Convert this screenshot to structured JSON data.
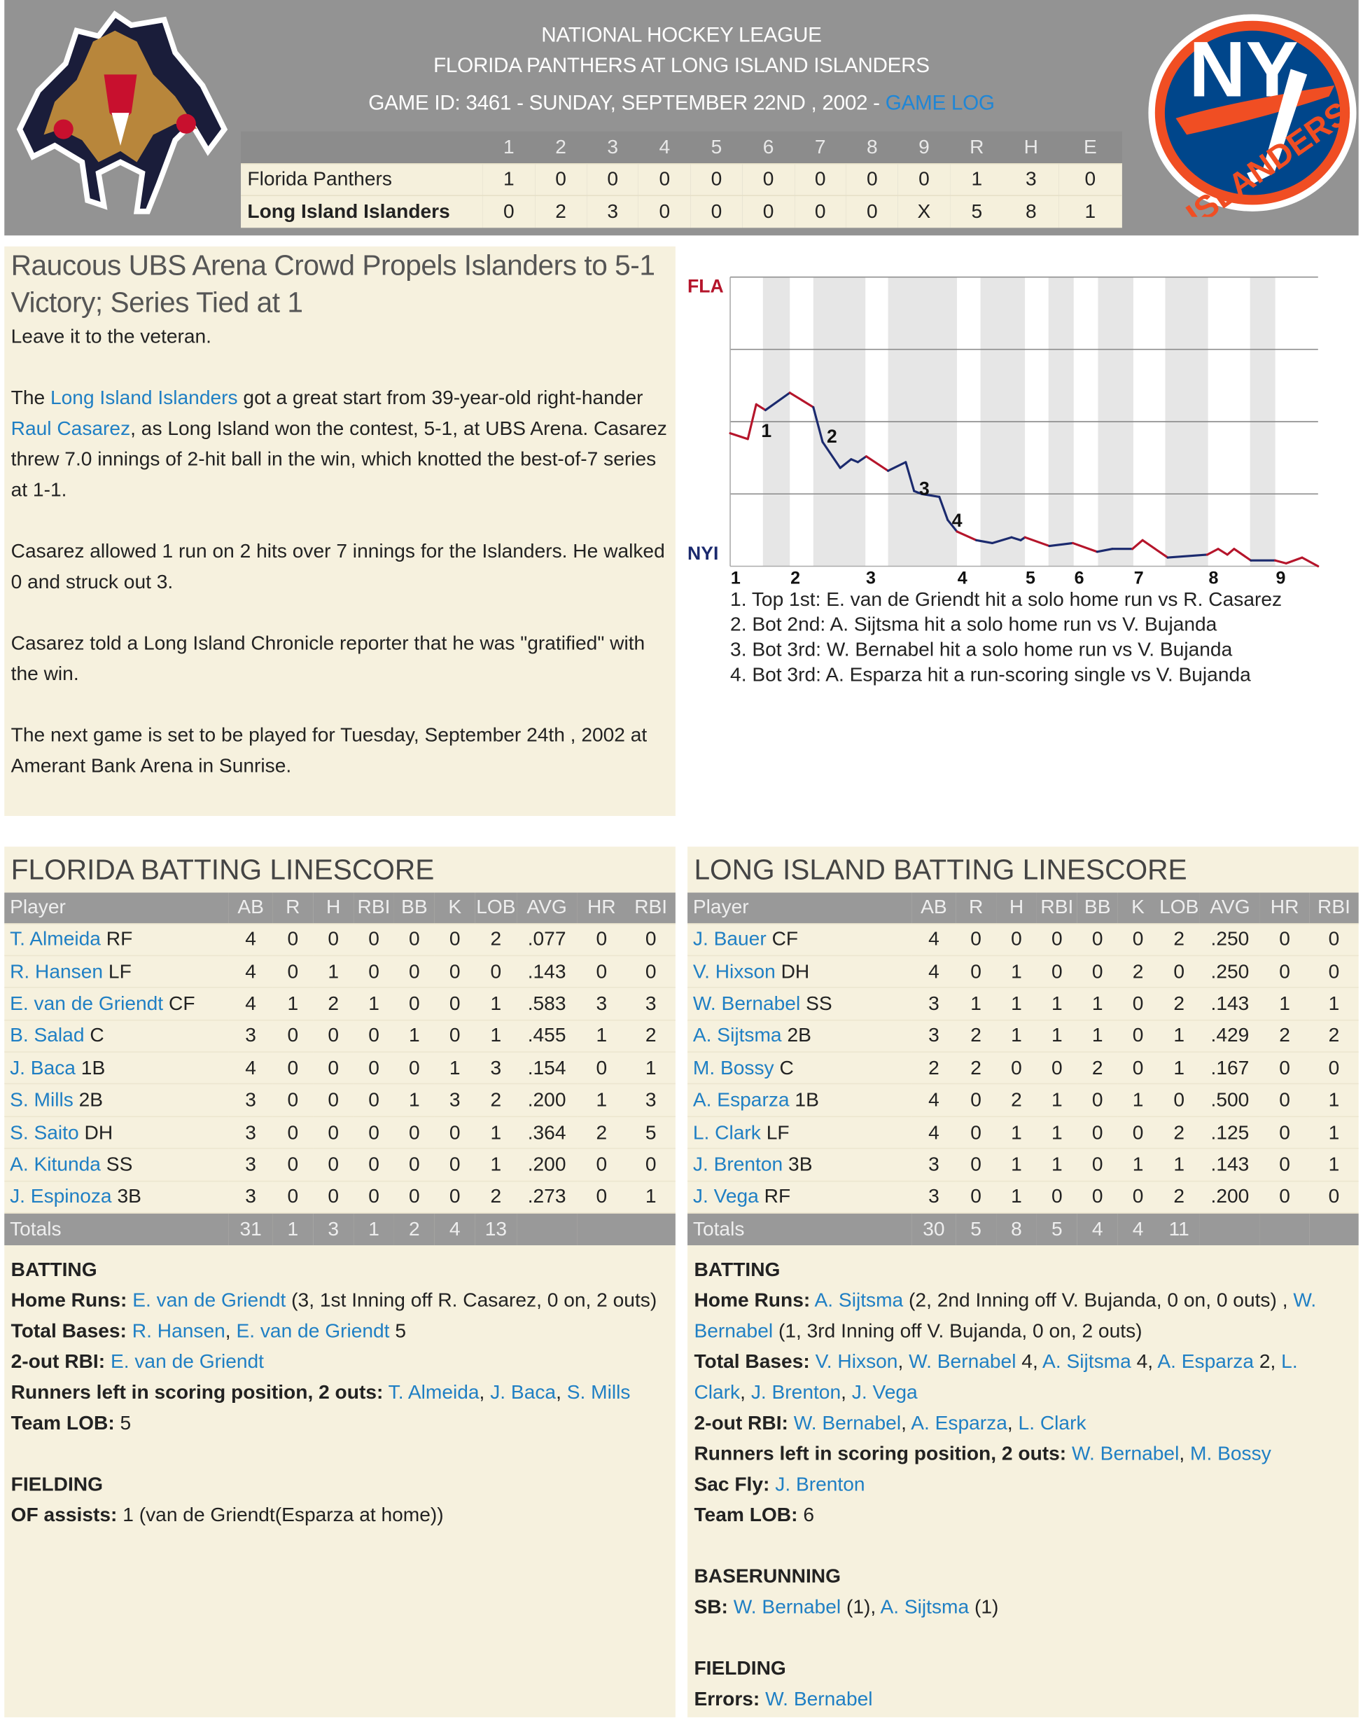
{
  "header": {
    "league": "NATIONAL HOCKEY LEAGUE",
    "matchup": "FLORIDA PANTHERS AT LONG ISLAND ISLANDERS",
    "game_info": "GAME ID: 3461 - SUNDAY, SEPTEMBER 22ND , 2002 - ",
    "game_log_link": "GAME LOG",
    "away_logo": "florida-panthers-logo",
    "home_logo": {
      "name": "islanders-logo",
      "text_top": "NY",
      "text_ring": "ISLANDERS"
    }
  },
  "linescore": {
    "columns": [
      "1",
      "2",
      "3",
      "4",
      "5",
      "6",
      "7",
      "8",
      "9",
      "R",
      "H",
      "E"
    ],
    "rows": [
      {
        "team": "Florida Panthers",
        "values": [
          "1",
          "0",
          "0",
          "0",
          "0",
          "0",
          "0",
          "0",
          "0",
          "1",
          "3",
          "0"
        ]
      },
      {
        "team": "Long Island Islanders",
        "values": [
          "0",
          "2",
          "3",
          "0",
          "0",
          "0",
          "0",
          "0",
          "X",
          "5",
          "8",
          "1"
        ]
      }
    ]
  },
  "article": {
    "headline": "Raucous UBS Arena Crowd Propels Islanders to 5-1 Victory; Series Tied at 1",
    "paragraphs": [
      [
        {
          "t": "Leave it to the veteran."
        }
      ],
      [
        {
          "t": "The "
        },
        {
          "t": "Long Island Islanders",
          "link": true
        },
        {
          "t": " got a great start from 39-year-old right-hander "
        },
        {
          "t": "Raul Casarez",
          "link": true
        },
        {
          "t": ", as Long Island won the contest, 5-1, at UBS Arena. Casarez threw 7.0 innings of 2-hit ball in the win, which knotted the best-of-7 series at 1-1."
        }
      ],
      [
        {
          "t": "Casarez allowed 1 run on 2 hits over 7 innings for the Islanders. He walked 0 and struck out 3."
        }
      ],
      [
        {
          "t": "Casarez told a Long Island Chronicle reporter that he was \"gratified\" with the win."
        }
      ],
      [
        {
          "t": "The next game is set to be played for Tuesday, September 24th , 2002 at Amerant Bank Arena in Sunrise."
        }
      ]
    ]
  },
  "chart_data": {
    "type": "line",
    "top_label": "FLA",
    "bottom_label": "NYI",
    "colors": {
      "top_team": "#b5152b",
      "bottom_team": "#1b2a6e",
      "shade": "#e6e6e6",
      "grid": "#888888"
    },
    "ylim": [
      0,
      1
    ],
    "grid": true,
    "x_ticks": [
      {
        "x": 0,
        "label": "1"
      },
      {
        "x": 7.1,
        "label": "2"
      },
      {
        "x": 16.1,
        "label": "3"
      },
      {
        "x": 27,
        "label": "4"
      },
      {
        "x": 35.1,
        "label": "5"
      },
      {
        "x": 40.9,
        "label": "6"
      },
      {
        "x": 48,
        "label": "7"
      },
      {
        "x": 56.9,
        "label": "8"
      },
      {
        "x": 64.9,
        "label": "9"
      }
    ],
    "bottom_half_ranges": [
      [
        3.9,
        7.1
      ],
      [
        9.9,
        16.1
      ],
      [
        18.8,
        27
      ],
      [
        29.8,
        35.1
      ],
      [
        37.9,
        40.9
      ],
      [
        43.8,
        48
      ],
      [
        51.8,
        56.9
      ],
      [
        61.9,
        64.9
      ]
    ],
    "xlim": [
      0,
      70
    ],
    "series": [
      {
        "x": [
          0,
          2.1,
          3.1,
          4.2,
          7.1,
          9.9,
          11,
          13.1,
          14.4,
          15.2,
          16.2,
          18.8,
          20.9,
          21.9,
          22.8,
          24.9,
          25.9,
          27,
          29.3,
          31.2,
          33.5,
          34.6,
          35.1,
          38,
          40.8,
          43.7,
          45.5,
          47.9,
          49.1,
          52.1,
          56.8,
          58.1,
          59.2,
          60,
          62,
          64.9,
          66.2,
          68.1,
          70
        ],
        "y": [
          0.46,
          0.44,
          0.56,
          0.54,
          0.6,
          0.55,
          0.43,
          0.34,
          0.37,
          0.36,
          0.38,
          0.33,
          0.36,
          0.26,
          0.25,
          0.24,
          0.16,
          0.12,
          0.09,
          0.08,
          0.1,
          0.09,
          0.1,
          0.07,
          0.08,
          0.05,
          0.06,
          0.06,
          0.09,
          0.03,
          0.04,
          0.06,
          0.04,
          0.06,
          0.02,
          0.02,
          0.01,
          0.03,
          0.0
        ]
      }
    ],
    "markers": [
      {
        "x": 3.7,
        "y": 0.47,
        "label": "1"
      },
      {
        "x": 11.5,
        "y": 0.45,
        "label": "2"
      },
      {
        "x": 22.5,
        "y": 0.27,
        "label": "3"
      },
      {
        "x": 26.4,
        "y": 0.16,
        "label": "4"
      }
    ],
    "annotations": [
      "1. Top 1st: E. van de Griendt hit a solo home run vs R. Casarez",
      "2. Bot 2nd: A. Sijtsma hit a solo home run vs V. Bujanda",
      "3. Bot 3rd: W. Bernabel hit a solo home run vs V. Bujanda",
      "4. Bot 3rd: A. Esparza hit a run-scoring single vs V. Bujanda"
    ]
  },
  "batting": [
    {
      "title": "FLORIDA BATTING LINESCORE",
      "columns": [
        "Player",
        "AB",
        "R",
        "H",
        "RBI",
        "BB",
        "K",
        "LOB",
        "AVG",
        "HR",
        "RBI"
      ],
      "rows": [
        {
          "name": "T. Almeida",
          "pos": "RF",
          "stats": [
            "4",
            "0",
            "0",
            "0",
            "0",
            "0",
            "2",
            ".077",
            "0",
            "0"
          ]
        },
        {
          "name": "R. Hansen",
          "pos": "LF",
          "stats": [
            "4",
            "0",
            "1",
            "0",
            "0",
            "0",
            "0",
            ".143",
            "0",
            "0"
          ]
        },
        {
          "name": "E. van de Griendt",
          "pos": "CF",
          "stats": [
            "4",
            "1",
            "2",
            "1",
            "0",
            "0",
            "1",
            ".583",
            "3",
            "3"
          ]
        },
        {
          "name": "B. Salad",
          "pos": "C",
          "stats": [
            "3",
            "0",
            "0",
            "0",
            "1",
            "0",
            "1",
            ".455",
            "1",
            "2"
          ]
        },
        {
          "name": "J. Baca",
          "pos": "1B",
          "stats": [
            "4",
            "0",
            "0",
            "0",
            "0",
            "1",
            "3",
            ".154",
            "0",
            "1"
          ]
        },
        {
          "name": "S. Mills",
          "pos": "2B",
          "stats": [
            "3",
            "0",
            "0",
            "0",
            "1",
            "3",
            "2",
            ".200",
            "1",
            "3"
          ]
        },
        {
          "name": "S. Saito",
          "pos": "DH",
          "stats": [
            "3",
            "0",
            "0",
            "0",
            "0",
            "0",
            "1",
            ".364",
            "2",
            "5"
          ]
        },
        {
          "name": "A. Kitunda",
          "pos": "SS",
          "stats": [
            "3",
            "0",
            "0",
            "0",
            "0",
            "0",
            "1",
            ".200",
            "0",
            "0"
          ]
        },
        {
          "name": "J. Espinoza",
          "pos": "3B",
          "stats": [
            "3",
            "0",
            "0",
            "0",
            "0",
            "0",
            "2",
            ".273",
            "0",
            "1"
          ]
        }
      ],
      "totals": {
        "label": "Totals",
        "stats": [
          "31",
          "1",
          "3",
          "1",
          "2",
          "4",
          "13",
          "",
          "",
          ""
        ]
      },
      "sections": [
        {
          "title": "BATTING",
          "lines": [
            {
              "label": "Home Runs:",
              "parts": [
                {
                  "t": "E. van de Griendt",
                  "link": true
                },
                {
                  "t": " (3, 1st Inning off R. Casarez, 0 on, 2 outs)"
                }
              ]
            },
            {
              "label": "Total Bases:",
              "parts": [
                {
                  "t": "R. Hansen",
                  "link": true
                },
                {
                  "t": ", "
                },
                {
                  "t": "E. van de Griendt",
                  "link": true
                },
                {
                  "t": " 5"
                }
              ]
            },
            {
              "label": "2-out RBI:",
              "parts": [
                {
                  "t": "E. van de Griendt",
                  "link": true
                }
              ]
            },
            {
              "label": "Runners left in scoring position, 2 outs:",
              "parts": [
                {
                  "t": "T. Almeida",
                  "link": true
                },
                {
                  "t": ", "
                },
                {
                  "t": "J. Baca",
                  "link": true
                },
                {
                  "t": ", "
                },
                {
                  "t": "S. Mills",
                  "link": true
                }
              ]
            },
            {
              "label": "Team LOB:",
              "parts": [
                {
                  "t": "5"
                }
              ]
            }
          ]
        },
        {
          "title": "FIELDING",
          "lines": [
            {
              "label": "OF assists:",
              "parts": [
                {
                  "t": "1 (van de Griendt(Esparza at home))"
                }
              ]
            }
          ]
        }
      ]
    },
    {
      "title": "LONG ISLAND BATTING LINESCORE",
      "columns": [
        "Player",
        "AB",
        "R",
        "H",
        "RBI",
        "BB",
        "K",
        "LOB",
        "AVG",
        "HR",
        "RBI"
      ],
      "rows": [
        {
          "name": "J. Bauer",
          "pos": "CF",
          "stats": [
            "4",
            "0",
            "0",
            "0",
            "0",
            "0",
            "2",
            ".250",
            "0",
            "0"
          ]
        },
        {
          "name": "V. Hixson",
          "pos": "DH",
          "stats": [
            "4",
            "0",
            "1",
            "0",
            "0",
            "2",
            "0",
            ".250",
            "0",
            "0"
          ]
        },
        {
          "name": "W. Bernabel",
          "pos": "SS",
          "stats": [
            "3",
            "1",
            "1",
            "1",
            "1",
            "0",
            "2",
            ".143",
            "1",
            "1"
          ]
        },
        {
          "name": "A. Sijtsma",
          "pos": "2B",
          "stats": [
            "3",
            "2",
            "1",
            "1",
            "1",
            "0",
            "1",
            ".429",
            "2",
            "2"
          ]
        },
        {
          "name": "M. Bossy",
          "pos": "C",
          "stats": [
            "2",
            "2",
            "0",
            "0",
            "2",
            "0",
            "1",
            ".167",
            "0",
            "0"
          ]
        },
        {
          "name": "A. Esparza",
          "pos": "1B",
          "stats": [
            "4",
            "0",
            "2",
            "1",
            "0",
            "1",
            "0",
            ".500",
            "0",
            "1"
          ]
        },
        {
          "name": "L. Clark",
          "pos": "LF",
          "stats": [
            "4",
            "0",
            "1",
            "1",
            "0",
            "0",
            "2",
            ".125",
            "0",
            "1"
          ]
        },
        {
          "name": "J. Brenton",
          "pos": "3B",
          "stats": [
            "3",
            "0",
            "1",
            "1",
            "0",
            "1",
            "1",
            ".143",
            "0",
            "1"
          ]
        },
        {
          "name": "J. Vega",
          "pos": "RF",
          "stats": [
            "3",
            "0",
            "1",
            "0",
            "0",
            "0",
            "2",
            ".200",
            "0",
            "0"
          ]
        }
      ],
      "totals": {
        "label": "Totals",
        "stats": [
          "30",
          "5",
          "8",
          "5",
          "4",
          "4",
          "11",
          "",
          "",
          ""
        ]
      },
      "sections": [
        {
          "title": "BATTING",
          "lines": [
            {
              "label": "Home Runs:",
              "parts": [
                {
                  "t": "A. Sijtsma",
                  "link": true
                },
                {
                  "t": " (2, 2nd Inning off V. Bujanda, 0 on, 0 outs) , "
                },
                {
                  "t": "W. Bernabel",
                  "link": true
                },
                {
                  "t": " (1, 3rd Inning off V. Bujanda, 0 on, 2 outs)"
                }
              ]
            },
            {
              "label": "Total Bases:",
              "parts": [
                {
                  "t": "V. Hixson",
                  "link": true
                },
                {
                  "t": ", "
                },
                {
                  "t": "W. Bernabel",
                  "link": true
                },
                {
                  "t": " 4, "
                },
                {
                  "t": "A. Sijtsma",
                  "link": true
                },
                {
                  "t": " 4, "
                },
                {
                  "t": "A. Esparza",
                  "link": true
                },
                {
                  "t": " 2, "
                },
                {
                  "t": "L. Clark",
                  "link": true
                },
                {
                  "t": ", "
                },
                {
                  "t": "J. Brenton",
                  "link": true
                },
                {
                  "t": ", "
                },
                {
                  "t": "J. Vega",
                  "link": true
                }
              ]
            },
            {
              "label": "2-out RBI:",
              "parts": [
                {
                  "t": "W. Bernabel",
                  "link": true
                },
                {
                  "t": ", "
                },
                {
                  "t": "A. Esparza",
                  "link": true
                },
                {
                  "t": ", "
                },
                {
                  "t": "L. Clark",
                  "link": true
                }
              ]
            },
            {
              "label": "Runners left in scoring position, 2 outs:",
              "parts": [
                {
                  "t": "W. Bernabel",
                  "link": true
                },
                {
                  "t": ", "
                },
                {
                  "t": "M. Bossy",
                  "link": true
                }
              ]
            },
            {
              "label": "Sac Fly:",
              "parts": [
                {
                  "t": "J. Brenton",
                  "link": true
                }
              ]
            },
            {
              "label": "Team LOB:",
              "parts": [
                {
                  "t": "6"
                }
              ]
            }
          ]
        },
        {
          "title": "BASERUNNING",
          "lines": [
            {
              "label": "SB:",
              "parts": [
                {
                  "t": "W. Bernabel",
                  "link": true
                },
                {
                  "t": " (1), "
                },
                {
                  "t": "A. Sijtsma",
                  "link": true
                },
                {
                  "t": " (1)"
                }
              ]
            }
          ]
        },
        {
          "title": "FIELDING",
          "lines": [
            {
              "label": "Errors:",
              "parts": [
                {
                  "t": "W. Bernabel",
                  "link": true
                }
              ]
            }
          ]
        }
      ]
    }
  ]
}
